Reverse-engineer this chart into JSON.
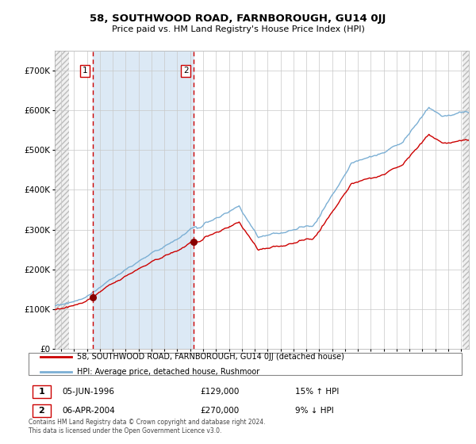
{
  "title": "58, SOUTHWOOD ROAD, FARNBOROUGH, GU14 0JJ",
  "subtitle": "Price paid vs. HM Land Registry's House Price Index (HPI)",
  "legend_line1": "58, SOUTHWOOD ROAD, FARNBOROUGH, GU14 0JJ (detached house)",
  "legend_line2": "HPI: Average price, detached house, Rushmoor",
  "transaction1_label": "1",
  "transaction1_date": "05-JUN-1996",
  "transaction1_price": 129000,
  "transaction1_price_str": "£129,000",
  "transaction1_pct": "15% ↑ HPI",
  "transaction1_x": 1996.46,
  "transaction2_label": "2",
  "transaction2_date": "06-APR-2004",
  "transaction2_price": 270000,
  "transaction2_price_str": "£270,000",
  "transaction2_pct": "9% ↓ HPI",
  "transaction2_x": 2004.27,
  "hpi_color": "#7bafd4",
  "price_color": "#cc0000",
  "marker_color": "#880000",
  "vline_color": "#cc0000",
  "shade_color": "#dce9f5",
  "background_color": "#ffffff",
  "grid_color": "#c8c8c8",
  "ylim": [
    0,
    750000
  ],
  "xlim_start": 1993.5,
  "xlim_end": 2025.6,
  "hatch_end": 1994.58,
  "hatch_start_right": 2025.08,
  "footer": "Contains HM Land Registry data © Crown copyright and database right 2024.\nThis data is licensed under the Open Government Licence v3.0."
}
